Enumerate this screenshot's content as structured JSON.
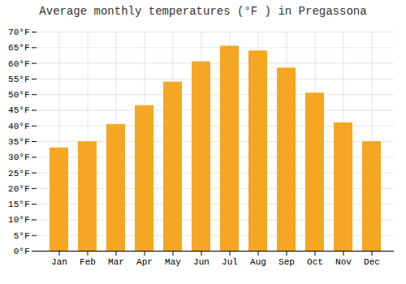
{
  "chart_data": {
    "type": "bar",
    "title": "Average monthly temperatures (°F ) in Pregassona",
    "categories": [
      "Jan",
      "Feb",
      "Mar",
      "Apr",
      "May",
      "Jun",
      "Jul",
      "Aug",
      "Sep",
      "Oct",
      "Nov",
      "Dec"
    ],
    "values": [
      33,
      35,
      40.5,
      46.5,
      54,
      60.5,
      65.5,
      64,
      58.5,
      50.5,
      41,
      35
    ],
    "color": "#F5A623",
    "ylim": [
      0,
      70
    ],
    "yticks": [
      {
        "value": 0,
        "label": "0°F"
      },
      {
        "value": 5,
        "label": "5°F"
      },
      {
        "value": 10,
        "label": "10°F"
      },
      {
        "value": 15,
        "label": "15°F"
      },
      {
        "value": 20,
        "label": "20°F"
      },
      {
        "value": 25,
        "label": "25°F"
      },
      {
        "value": 30,
        "label": "30°F"
      },
      {
        "value": 35,
        "label": "35°F"
      },
      {
        "value": 40,
        "label": "40°F"
      },
      {
        "value": 45,
        "label": "45°F"
      },
      {
        "value": 50,
        "label": "50°F"
      },
      {
        "value": 55,
        "label": "55°F"
      },
      {
        "value": 60,
        "label": "60°F"
      },
      {
        "value": 65,
        "label": "65°F"
      },
      {
        "value": 70,
        "label": "70°F"
      }
    ],
    "grid": true
  }
}
